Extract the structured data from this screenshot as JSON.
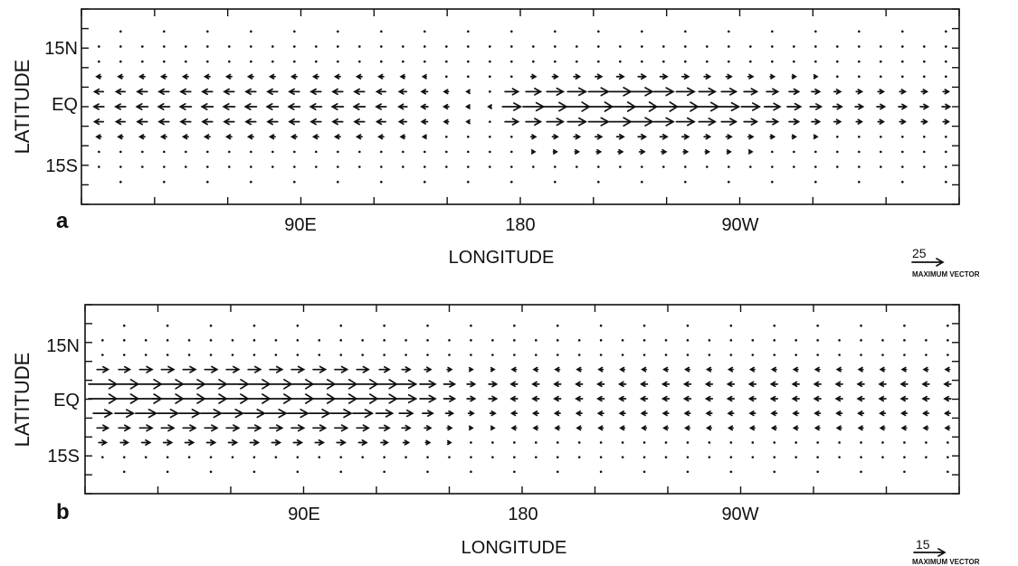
{
  "chart_data": [
    {
      "type": "vector_field",
      "panel_label": "a",
      "xlabel": "LONGITUDE",
      "ylabel": "LATITUDE",
      "x_ticks": [
        {
          "lon": 90,
          "label": "90E"
        },
        {
          "lon": 180,
          "label": "180"
        },
        {
          "lon": 270,
          "label": "90W"
        }
      ],
      "y_ticks": [
        {
          "lat": 15,
          "label": "15N"
        },
        {
          "lat": 0,
          "label": "EQ"
        },
        {
          "lat": -15,
          "label": "15S"
        }
      ],
      "xlim": [
        0,
        360
      ],
      "ylim": [
        -25,
        25
      ],
      "lat_rows": [
        20,
        16,
        12,
        8,
        4,
        0,
        -4,
        -8,
        -12,
        -16,
        -20
      ],
      "lon_step": 9,
      "jets": [
        {
          "lat": 8,
          "west_speed": 4,
          "east_speed": 6,
          "reverse_lon": 180,
          "reverse_sign": 1,
          "core_lon": 230
        },
        {
          "lat": 4,
          "west_speed": 8,
          "east_speed": 18,
          "reverse_lon": 175,
          "reverse_sign": 1,
          "core_lon": 225
        },
        {
          "lat": 0,
          "west_speed": 9,
          "east_speed": 25,
          "reverse_lon": 175,
          "reverse_sign": 1,
          "core_lon": 225
        },
        {
          "lat": -4,
          "west_speed": 8,
          "east_speed": 18,
          "reverse_lon": 175,
          "reverse_sign": 1,
          "core_lon": 225
        },
        {
          "lat": -8,
          "west_speed": 4,
          "east_speed": 6,
          "reverse_lon": 180,
          "reverse_sign": 1,
          "core_lon": 230
        },
        {
          "lat": -12,
          "west_speed": 2,
          "east_speed": 4,
          "reverse_lon": 150,
          "reverse_sign": 1,
          "core_lon": 230
        }
      ],
      "scale_label": "25",
      "scale_caption": "MAXIMUM VECTOR",
      "max_vector": 25
    },
    {
      "type": "vector_field",
      "panel_label": "b",
      "xlabel": "LONGITUDE",
      "ylabel": "LATITUDE",
      "x_ticks": [
        {
          "lon": 90,
          "label": "90E"
        },
        {
          "lon": 180,
          "label": "180"
        },
        {
          "lon": 270,
          "label": "90W"
        }
      ],
      "y_ticks": [
        {
          "lat": 15,
          "label": "15N"
        },
        {
          "lat": 0,
          "label": "EQ"
        },
        {
          "lat": -15,
          "label": "15S"
        }
      ],
      "xlim": [
        0,
        360
      ],
      "ylim": [
        -25,
        25
      ],
      "lat_rows": [
        20,
        16,
        12,
        8,
        4,
        0,
        -4,
        -8,
        -12,
        -16,
        -20
      ],
      "lon_step": 9,
      "jets": [
        {
          "lat": 8,
          "west_speed": 6,
          "east_speed": 8,
          "reverse_lon": 170,
          "reverse_sign": -1,
          "core_lon": 60
        },
        {
          "lat": 4,
          "west_speed": 15,
          "east_speed": 12,
          "reverse_lon": 170,
          "reverse_sign": -1,
          "core_lon": 60
        },
        {
          "lat": 0,
          "west_speed": 15,
          "east_speed": 12,
          "reverse_lon": 170,
          "reverse_sign": -1,
          "core_lon": 60
        },
        {
          "lat": -4,
          "west_speed": 10,
          "east_speed": 10,
          "reverse_lon": 170,
          "reverse_sign": -1,
          "core_lon": 60
        },
        {
          "lat": -8,
          "west_speed": 6,
          "east_speed": 8,
          "reverse_lon": 170,
          "reverse_sign": -1,
          "core_lon": 60
        },
        {
          "lat": -12,
          "west_speed": 4,
          "east_speed": 4,
          "reverse_lon": 170,
          "reverse_sign": -1,
          "core_lon": 60
        }
      ],
      "scale_label": "15",
      "scale_caption": "MAXIMUM VECTOR",
      "max_vector": 15
    }
  ]
}
